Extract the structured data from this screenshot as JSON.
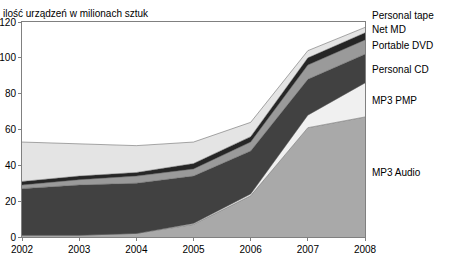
{
  "chart_data": {
    "type": "area",
    "stacked": true,
    "grid": false,
    "y_label": "ilość urządzeń w milionach sztuk",
    "x": [
      2002,
      2003,
      2004,
      2005,
      2006,
      2007,
      2008
    ],
    "xlim": [
      2002,
      2008
    ],
    "xticks": [
      2002,
      2003,
      2004,
      2005,
      2006,
      2007,
      2008
    ],
    "ylim": [
      0,
      120
    ],
    "yticks": [
      0,
      20,
      40,
      60,
      80,
      100,
      120
    ],
    "series": [
      {
        "name": "MP3 Audio",
        "color": "#a9a9a9",
        "values": [
          1,
          1,
          2,
          7,
          23,
          61,
          67
        ]
      },
      {
        "name": "MP3 PMP",
        "color": "#f0f0f0",
        "values": [
          0,
          0,
          0,
          0.5,
          1,
          7,
          19
        ]
      },
      {
        "name": "Personal CD",
        "color": "#414141",
        "values": [
          26,
          28,
          28,
          26.5,
          24,
          20,
          16
        ]
      },
      {
        "name": "Portable DVD",
        "color": "#9a9a9a",
        "values": [
          2,
          3,
          4,
          4,
          5,
          8,
          8
        ]
      },
      {
        "name": "Net MD",
        "color": "#262626",
        "values": [
          2,
          2,
          2,
          3,
          3,
          4,
          4
        ]
      },
      {
        "name": "Personal tape",
        "color": "#e4e4e4",
        "values": [
          22,
          18,
          15,
          12,
          8,
          4,
          3
        ]
      }
    ]
  }
}
